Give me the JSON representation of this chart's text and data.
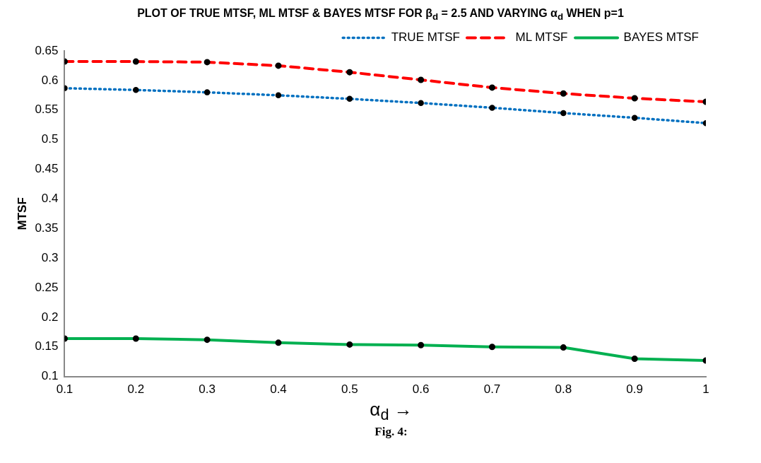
{
  "chart_data": {
    "type": "line",
    "title": "PLOT OF TRUE MTSF, ML MTSF & BAYES  MTSF FOR β$_{d}$ = 2.5 AND VARYING α$_{d}$ WHEN p=1",
    "xlabel": "α$_{d}$ →",
    "ylabel": "MTSF",
    "annotations": [
      "Fig. 4:"
    ],
    "x": [
      0.1,
      0.2,
      0.3,
      0.4,
      0.5,
      0.6,
      0.7,
      0.8,
      0.9,
      1
    ],
    "series": [
      {
        "name": "TRUE MTSF",
        "color": "#0070c0",
        "line_style": "dotted",
        "values": [
          0.587,
          0.584,
          0.58,
          0.575,
          0.569,
          0.562,
          0.554,
          0.545,
          0.537,
          0.528
        ]
      },
      {
        "name": "ML MTSF",
        "color": "#ff0000",
        "line_style": "dashed",
        "values": [
          0.632,
          0.632,
          0.631,
          0.625,
          0.614,
          0.601,
          0.588,
          0.578,
          0.57,
          0.564
        ]
      },
      {
        "name": "BAYES MTSF",
        "color": "#00b050",
        "line_style": "solid",
        "values": [
          0.164,
          0.164,
          0.162,
          0.157,
          0.154,
          0.153,
          0.15,
          0.149,
          0.13,
          0.127
        ]
      }
    ],
    "xlim": [
      0.1,
      1
    ],
    "xticks": [
      0.1,
      0.2,
      0.3,
      0.4,
      0.5,
      0.6,
      0.7,
      0.8,
      0.9,
      1
    ],
    "ylim": [
      0.1,
      0.65
    ],
    "yticks": [
      0.1,
      0.15,
      0.2,
      0.25,
      0.3,
      0.35,
      0.4,
      0.45,
      0.5,
      0.55,
      0.6,
      0.65
    ],
    "grid": false,
    "legend": "top right",
    "marker": "circle"
  }
}
